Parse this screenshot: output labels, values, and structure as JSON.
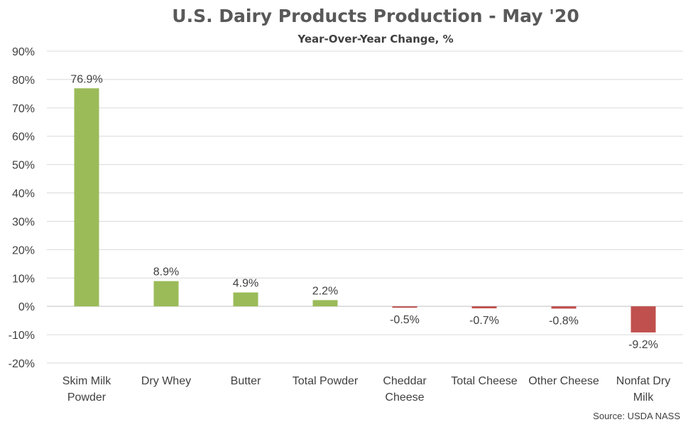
{
  "chart_data": {
    "type": "bar",
    "title": "U.S. Dairy Products Production - May '20",
    "subtitle": "Year-Over-Year Change, %",
    "categories": [
      [
        "Skim Milk",
        "Powder"
      ],
      [
        "Dry Whey"
      ],
      [
        "Butter"
      ],
      [
        "Total Powder"
      ],
      [
        "Cheddar",
        "Cheese"
      ],
      [
        "Total  Cheese"
      ],
      [
        "Other Cheese"
      ],
      [
        "Nonfat Dry",
        "Milk"
      ]
    ],
    "values": [
      76.9,
      8.9,
      4.9,
      2.2,
      -0.5,
      -0.7,
      -0.8,
      -9.2
    ],
    "data_labels": [
      "76.9%",
      "8.9%",
      "4.9%",
      "2.2%",
      "-0.5%",
      "-0.7%",
      "-0.8%",
      "-9.2%"
    ],
    "ylim": [
      -20,
      90
    ],
    "yticks": [
      90,
      80,
      70,
      60,
      50,
      40,
      30,
      20,
      10,
      0,
      -10,
      -20
    ],
    "ytick_labels": [
      "90%",
      "80%",
      "70%",
      "60%",
      "50%",
      "40%",
      "30%",
      "20%",
      "10%",
      "0%",
      "-10%",
      "-20%"
    ],
    "xlabel": "",
    "ylabel": "",
    "grid": true,
    "colors": {
      "positive": "#9bbb59",
      "negative": "#c0504d"
    },
    "source": "Source: USDA NASS"
  }
}
